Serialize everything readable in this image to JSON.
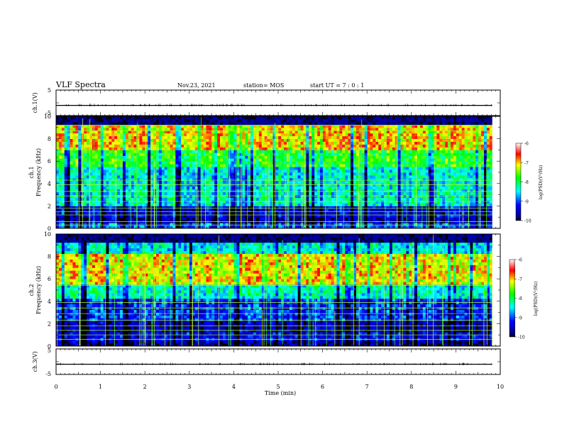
{
  "header": {
    "title": "VLF Spectra",
    "date": "Nov.23, 2021",
    "station": "station= MOS",
    "start": "start  UT  =   7 : 0  : 1"
  },
  "chart_data": [
    {
      "type": "line",
      "name": "waveform-ch1",
      "ylabel": "ch.1(V)",
      "ylim": [
        -5,
        5
      ],
      "yticks": [
        "5",
        "-5"
      ],
      "xlim": [
        0,
        10
      ],
      "baseline": -1
    },
    {
      "type": "heatmap",
      "name": "spectrogram-ch1",
      "ylabel_top": "ch.1",
      "ylabel": "Frequency (kHz)",
      "ylim": [
        0,
        10
      ],
      "yticks": [
        "0",
        "2",
        "4",
        "6",
        "8",
        "10"
      ],
      "xlim": [
        0,
        9.82
      ],
      "colorbar": {
        "label": "log(PSD)(V²/Hz)",
        "ticks": [
          "-6",
          "-7",
          "-8",
          "-9",
          "-10"
        ],
        "range": [
          -10,
          -6
        ]
      },
      "bands": [
        {
          "from": 0,
          "to": 0.4,
          "level": -9.0
        },
        {
          "from": 0.4,
          "to": 1.0,
          "level": -9.6
        },
        {
          "from": 1.0,
          "to": 2.0,
          "level": -9.4
        },
        {
          "from": 2.0,
          "to": 5.5,
          "level": -8.4
        },
        {
          "from": 5.5,
          "to": 7.0,
          "level": -7.8
        },
        {
          "from": 7.0,
          "to": 9.3,
          "level": -7.0
        },
        {
          "from": 9.3,
          "to": 10.0,
          "level": -9.9
        }
      ],
      "lines_khz": [
        0.3,
        0.6,
        1.2,
        1.5,
        1.8,
        2.4,
        2.9,
        3.3,
        3.9,
        4.3,
        8.7,
        9.2
      ]
    },
    {
      "type": "heatmap",
      "name": "spectrogram-ch2",
      "ylabel_top": "ch.2",
      "ylabel": "Frequency (kHz)",
      "ylim": [
        0,
        10
      ],
      "yticks": [
        "0",
        "2",
        "4",
        "6",
        "8",
        "10"
      ],
      "xlim": [
        0,
        9.82
      ],
      "colorbar": {
        "label": "log(PSD)(V²/Hz)",
        "ticks": [
          "-6",
          "-7",
          "-8",
          "-9",
          "-10"
        ],
        "range": [
          -10,
          -6
        ]
      },
      "bands": [
        {
          "from": 0,
          "to": 0.5,
          "level": -9.7
        },
        {
          "from": 0.5,
          "to": 1.3,
          "level": -9.3
        },
        {
          "from": 1.3,
          "to": 2.2,
          "level": -9.6
        },
        {
          "from": 2.2,
          "to": 4.2,
          "level": -9.1
        },
        {
          "from": 4.2,
          "to": 5.5,
          "level": -8.3
        },
        {
          "from": 5.5,
          "to": 8.2,
          "level": -7.1
        },
        {
          "from": 8.2,
          "to": 9.3,
          "level": -8.4
        },
        {
          "from": 9.3,
          "to": 10.0,
          "level": -9.9
        }
      ],
      "lines_khz": [
        0.6,
        1.0,
        1.4,
        1.8,
        2.3,
        2.9,
        3.4,
        3.9,
        5.4
      ]
    },
    {
      "type": "line",
      "name": "waveform-ch3",
      "ylabel": "ch.3(V)",
      "ylim": [
        -5,
        5
      ],
      "yticks": [
        "5",
        "-5"
      ],
      "xlim": [
        0,
        10
      ],
      "baseline": -1
    }
  ],
  "xaxis": {
    "label": "Time  (min)",
    "ticks": [
      "0",
      "1",
      "2",
      "3",
      "4",
      "5",
      "6",
      "7",
      "8",
      "9",
      "10"
    ],
    "range": [
      0,
      10
    ]
  }
}
